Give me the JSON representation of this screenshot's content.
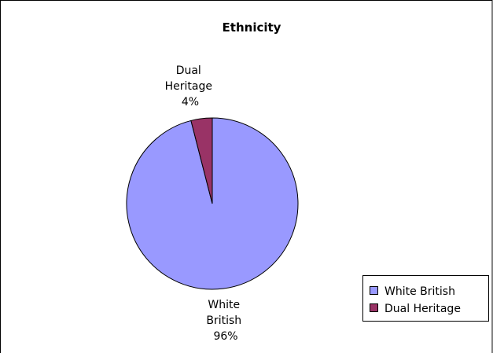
{
  "chart_data": {
    "type": "pie",
    "title": "Ethnicity",
    "slices": [
      {
        "label": "White British",
        "label_lines": [
          "White",
          "British"
        ],
        "percent_label": "96%",
        "value": 96,
        "color": "#9999ff"
      },
      {
        "label": "Dual Heritage",
        "label_lines": [
          "Dual",
          "Heritage"
        ],
        "percent_label": "4%",
        "value": 4,
        "color": "#993366"
      }
    ],
    "legend": {
      "placement": "bottom-right",
      "entries": [
        "White British",
        "Dual Heritage"
      ]
    }
  }
}
